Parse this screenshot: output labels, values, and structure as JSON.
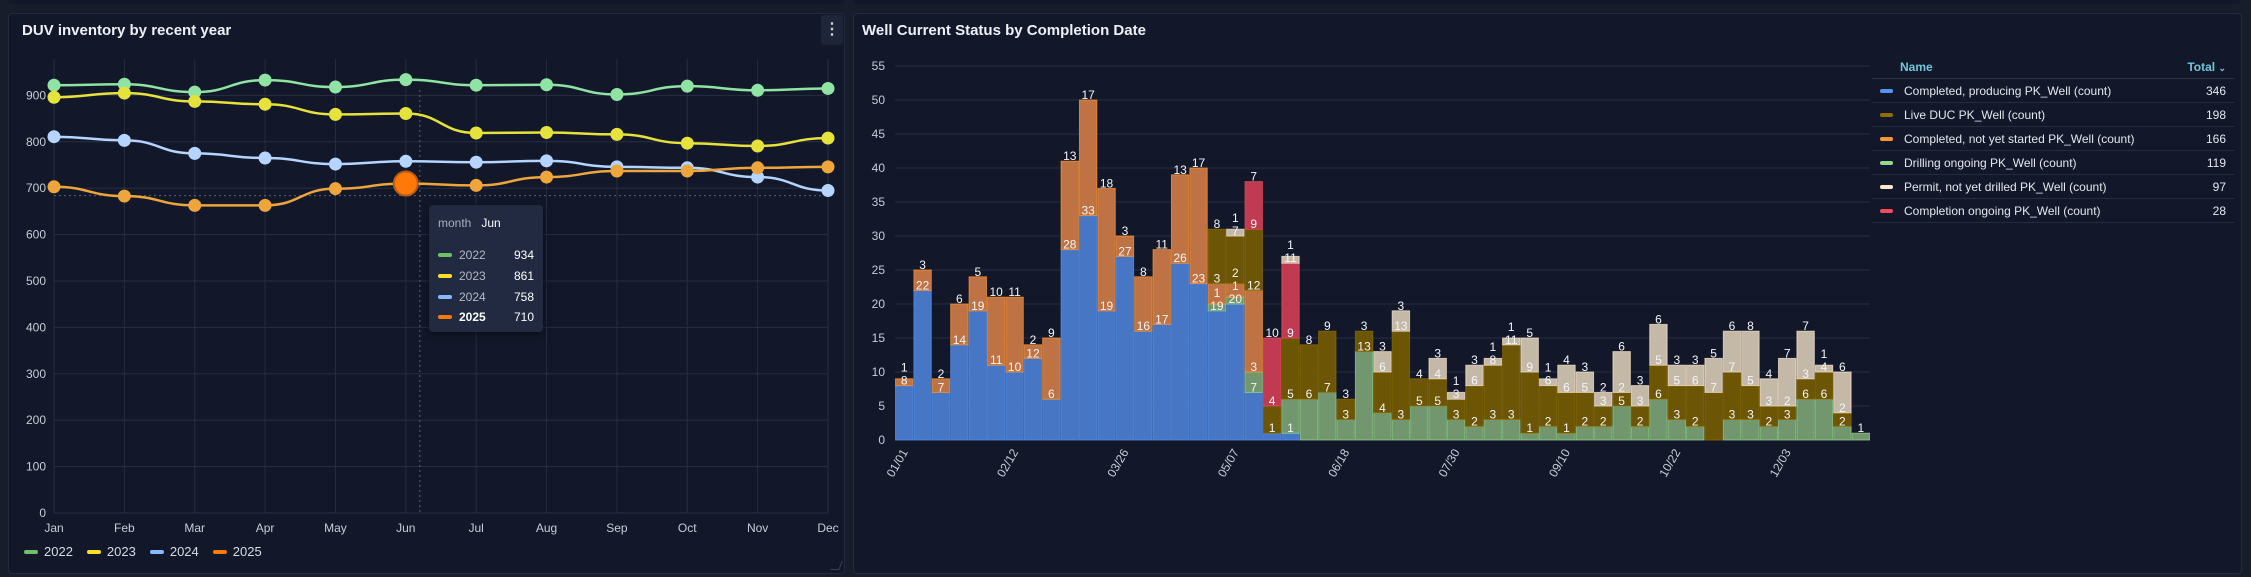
{
  "left_panel": {
    "title": "DUV inventory by recent year",
    "menu_icon": "kebab-menu-icon",
    "tooltip": {
      "header_label": "month",
      "header_value": "Jun",
      "rows": [
        {
          "name": "2022",
          "value": "934"
        },
        {
          "name": "2023",
          "value": "861"
        },
        {
          "name": "2024",
          "value": "758"
        },
        {
          "name": "2025",
          "value": "710"
        }
      ]
    }
  },
  "right_panel": {
    "title": "Well Current Status by Completion Date",
    "legend_table": {
      "col_name": "Name",
      "col_total": "Total",
      "sort_icon": "chevron-down-icon"
    }
  },
  "chart_data": [
    {
      "type": "line",
      "title": "DUV inventory by recent year",
      "categories": [
        "Jan",
        "Feb",
        "Mar",
        "Apr",
        "May",
        "Jun",
        "Jul",
        "Aug",
        "Sep",
        "Oct",
        "Nov",
        "Dec"
      ],
      "yticks": [
        "0",
        "100",
        "200",
        "300",
        "400",
        "500",
        "600",
        "700",
        "800",
        "900"
      ],
      "ylim": [
        0,
        1000
      ],
      "grid": true,
      "legend_position": "bottom-left",
      "highlighted_category": "Jun",
      "series": [
        {
          "name": "2022",
          "color": "#73bf69",
          "line_color": "#8fe3a3",
          "values": [
            922,
            924,
            907,
            933,
            918,
            934,
            922,
            923,
            902,
            920,
            911,
            915
          ]
        },
        {
          "name": "2023",
          "color": "#fade2a",
          "line_color": "#e6e23c",
          "values": [
            896,
            905,
            887,
            881,
            859,
            861,
            819,
            820,
            816,
            797,
            791,
            808
          ]
        },
        {
          "name": "2024",
          "color": "#8ab8ff",
          "line_color": "#b5d4ff",
          "values": [
            811,
            803,
            775,
            765,
            752,
            758,
            756,
            759,
            746,
            744,
            724,
            695
          ]
        },
        {
          "name": "2025",
          "color": "#ff780a",
          "line_color": "#eea53b",
          "values": [
            703,
            683,
            663,
            663,
            699,
            710,
            706,
            724,
            737,
            737,
            744,
            746
          ]
        }
      ]
    },
    {
      "type": "bar",
      "stacked": true,
      "title": "Well Current Status by Completion Date",
      "yticks": [
        "0",
        "5",
        "10",
        "15",
        "20",
        "25",
        "30",
        "35",
        "40",
        "45",
        "50",
        "55"
      ],
      "ylim": [
        0,
        55
      ],
      "grid": true,
      "legend_position": "right",
      "xtick_labels": [
        "01/01",
        "02/12",
        "03/26",
        "05/07",
        "06/18",
        "07/30",
        "09/10",
        "10/22",
        "12/03"
      ],
      "categories": [
        "01/01",
        "01/08",
        "01/15",
        "01/22",
        "01/29",
        "02/05",
        "02/12",
        "02/19",
        "02/26",
        "03/05",
        "03/12",
        "03/19",
        "03/26",
        "04/02",
        "04/09",
        "04/16",
        "04/23",
        "04/30",
        "05/07",
        "05/14",
        "05/21",
        "05/28",
        "06/04",
        "06/11",
        "06/18",
        "06/25",
        "07/02",
        "07/09",
        "07/16",
        "07/23",
        "07/30",
        "08/06",
        "08/13",
        "08/20",
        "08/27",
        "09/03",
        "09/10",
        "09/17",
        "09/24",
        "10/01",
        "10/08",
        "10/15",
        "10/22",
        "10/29",
        "11/05",
        "11/12",
        "11/19",
        "11/26",
        "12/03",
        "12/10",
        "12/17",
        "12/24",
        "12/31"
      ],
      "series": [
        {
          "name": "Completed, producing PK_Well (count)",
          "total": "346",
          "color": "#5794f2",
          "fill": "#4676c4",
          "values": [
            8,
            22,
            7,
            14,
            19,
            11,
            10,
            12,
            6,
            28,
            33,
            19,
            27,
            16,
            17,
            26,
            23,
            19,
            20,
            7,
            1,
            1,
            0,
            0,
            0,
            0,
            0,
            0,
            0,
            0,
            0,
            0,
            0,
            0,
            0,
            0,
            0,
            0,
            0,
            0,
            0,
            0,
            0,
            0,
            0,
            0,
            0,
            0,
            0,
            0,
            0,
            0,
            0
          ]
        },
        {
          "name": "Live DUC PK_Well (count)",
          "total": "198",
          "color": "#8f6f00",
          "fill": "#6d5506",
          "values": [
            0,
            0,
            0,
            0,
            0,
            0,
            0,
            0,
            0,
            0,
            0,
            0,
            0,
            0,
            0,
            0,
            0,
            8,
            7,
            9,
            4,
            9,
            8,
            9,
            3,
            3,
            6,
            13,
            4,
            4,
            3,
            6,
            8,
            11,
            9,
            6,
            6,
            5,
            3,
            2,
            3,
            5,
            5,
            6,
            7,
            7,
            5,
            3,
            2,
            3,
            4,
            2,
            0
          ]
        },
        {
          "name": "Completed, not yet started PK_Well (count)",
          "total": "166",
          "color": "#ff9830",
          "fill": "#bf7243",
          "values": [
            1,
            3,
            2,
            6,
            5,
            10,
            11,
            2,
            9,
            13,
            17,
            18,
            3,
            8,
            11,
            13,
            17,
            3,
            2,
            12,
            0,
            0,
            0,
            0,
            0,
            0,
            0,
            0,
            0,
            0,
            0,
            0,
            0,
            0,
            0,
            0,
            0,
            0,
            0,
            0,
            0,
            0,
            0,
            0,
            0,
            0,
            0,
            0,
            0,
            0,
            0,
            0,
            0
          ]
        },
        {
          "name": "Drilling ongoing PK_Well (count)",
          "total": "119",
          "color": "#96d98d",
          "fill": "#72966e",
          "values": [
            0,
            0,
            0,
            0,
            0,
            0,
            0,
            0,
            0,
            0,
            0,
            0,
            0,
            0,
            0,
            0,
            0,
            1,
            1,
            3,
            0,
            5,
            6,
            7,
            3,
            13,
            4,
            3,
            5,
            5,
            3,
            2,
            3,
            3,
            1,
            2,
            1,
            2,
            2,
            5,
            2,
            6,
            3,
            2,
            0,
            3,
            3,
            2,
            3,
            6,
            6,
            2,
            1
          ]
        },
        {
          "name": "Permit, not yet drilled PK_Well (count)",
          "total": "97",
          "color": "#fce8d0",
          "fill": "#c4b8a7",
          "values": [
            0,
            0,
            0,
            0,
            0,
            0,
            0,
            0,
            0,
            0,
            0,
            0,
            0,
            0,
            0,
            0,
            0,
            0,
            1,
            0,
            0,
            1,
            0,
            0,
            0,
            0,
            3,
            3,
            0,
            3,
            1,
            3,
            1,
            1,
            5,
            1,
            4,
            3,
            2,
            6,
            3,
            6,
            3,
            3,
            5,
            6,
            8,
            4,
            7,
            7,
            1,
            6,
            0
          ]
        },
        {
          "name": "Completion ongoing PK_Well (count)",
          "total": "28",
          "color": "#f2495c",
          "fill": "#c03b52",
          "values": [
            0,
            0,
            0,
            0,
            0,
            0,
            0,
            0,
            0,
            0,
            0,
            0,
            0,
            0,
            0,
            0,
            0,
            0,
            0,
            7,
            10,
            11,
            0,
            0,
            0,
            0,
            0,
            0,
            0,
            0,
            0,
            0,
            0,
            0,
            0,
            0,
            0,
            0,
            0,
            0,
            0,
            0,
            0,
            0,
            0,
            0,
            0,
            0,
            0,
            0,
            0,
            0,
            0
          ]
        }
      ]
    }
  ]
}
